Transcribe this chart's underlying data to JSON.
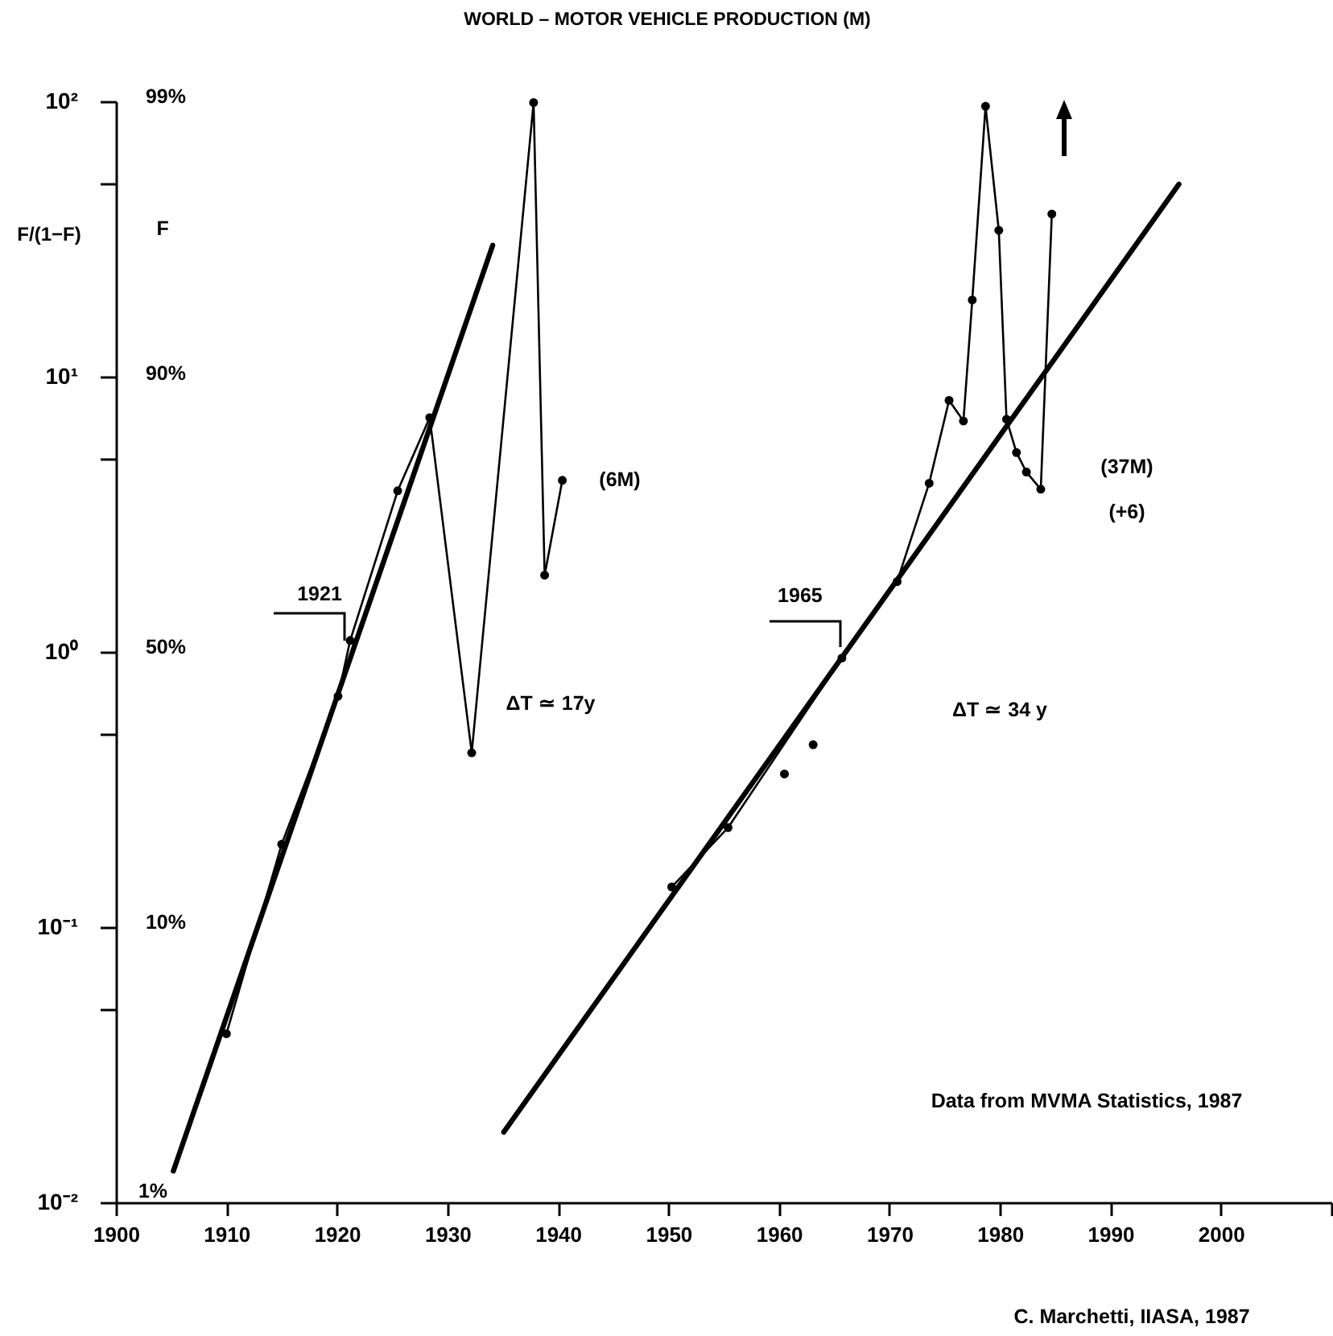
{
  "chart_data": {
    "type": "line",
    "title": "WORLD – MOTOR VEHICLE PRODUCTION (M)",
    "ylabel": "F/(1−F)",
    "log": "y",
    "grid": false,
    "line_style": "solid",
    "xlim": [
      1900,
      2010
    ],
    "xticks": [
      1900,
      1910,
      1920,
      1930,
      1940,
      1950,
      1960,
      1970,
      1980,
      1990,
      2000,
      {
        "value": 2010,
        "label": null
      }
    ],
    "ylim": [
      0.01,
      100
    ],
    "yticks": [
      {
        "value": 100,
        "label": "10²"
      },
      {
        "value": 50,
        "label": null
      },
      {
        "value": 10,
        "label": "10¹"
      },
      {
        "value": 5,
        "label": null
      },
      {
        "value": 1,
        "label": "10⁰"
      },
      {
        "value": 0.5,
        "label": null
      },
      {
        "value": 0.1,
        "label": "10⁻¹"
      },
      {
        "value": 0.05,
        "label": null
      },
      {
        "value": 0.01,
        "label": "10⁻²"
      }
    ],
    "series": [
      {
        "type": "line",
        "marker": "none",
        "color": "#000000",
        "x": [
          1905.2,
          1934.1
        ],
        "values": [
          0.013,
          30
        ]
      },
      {
        "type": "line",
        "marker": "circle",
        "color": "#000000",
        "x": [
          1910,
          1915,
          1920.1,
          1921.2,
          1925.5,
          1928.4,
          1932.2,
          1937.8,
          1938.8,
          1940.4
        ],
        "values": [
          0.041,
          0.2,
          0.69,
          1.1,
          3.85,
          7.1,
          0.43,
          99,
          1.9,
          4.2
        ]
      },
      {
        "type": "line",
        "marker": "none",
        "color": "#000000",
        "x": [
          1935.1,
          1996.2
        ],
        "values": [
          0.018,
          50
        ]
      },
      {
        "type": "line",
        "marker": "circle",
        "color": "#000000",
        "x": [
          1950.3,
          1955.4,
          1965.7,
          1970.7,
          1973.6,
          1975.4,
          1976.7,
          1977.5,
          1978.7,
          1979.9,
          1980.6,
          1981.5,
          1982.4,
          1983.7,
          1984.7
        ],
        "values": [
          0.14,
          0.23,
          0.95,
          1.8,
          4.1,
          8.2,
          6.9,
          19,
          96,
          34,
          7.0,
          5.3,
          4.5,
          3.9,
          39
        ]
      },
      {
        "type": "scatter",
        "marker": "circle",
        "color": "#000000",
        "x": [
          1960.5,
          1963.1
        ],
        "values": [
          0.36,
          0.46
        ]
      }
    ],
    "annotations": [
      {
        "text": "1921",
        "x": 1921.2,
        "y": 1.1
      },
      {
        "text": "1965",
        "x": 1965.7,
        "y": 0.95
      },
      "ΔT ≃ 17y",
      "ΔT ≃ 34 y",
      "(6M)",
      "(37M)",
      "(+6)",
      "Data from MVMA Statistics, 1987",
      "C. Marchetti, IIASA, 1987",
      "F",
      "99%",
      "90%",
      "50%",
      "10%",
      "1%"
    ]
  }
}
